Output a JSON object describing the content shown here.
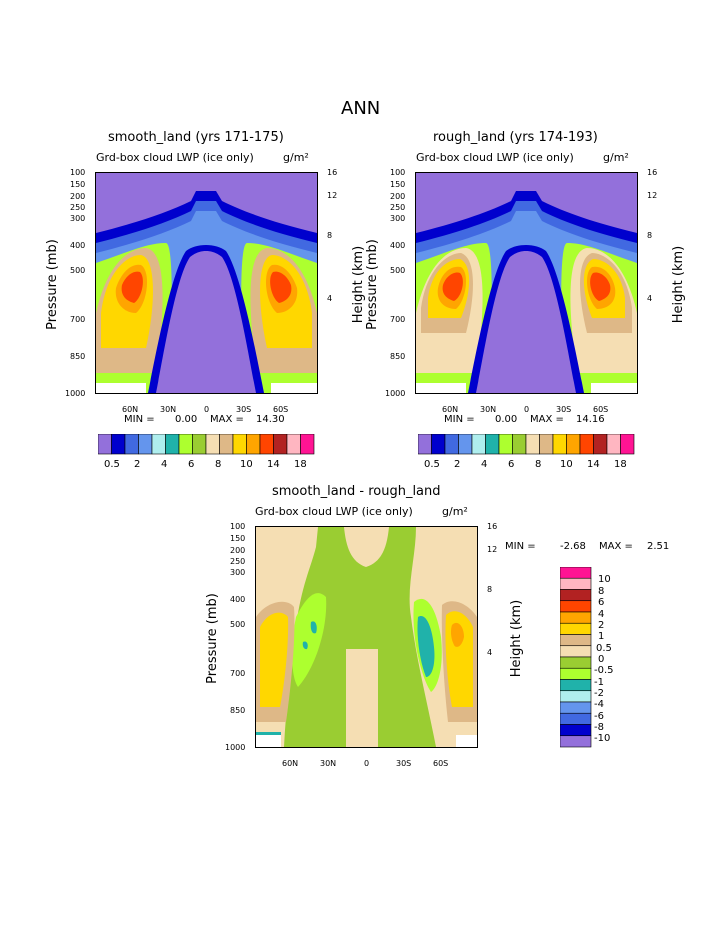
{
  "page_title": "ANN",
  "colors": {
    "lwp_levels": [
      "#9370DB",
      "#0000CD",
      "#4169E1",
      "#6495ED",
      "#AFEEEE",
      "#20B2AA",
      "#ADFF2F",
      "#9ACD32",
      "#F5DEB3",
      "#DEB887",
      "#FFD700",
      "#FFA500",
      "#FF4500",
      "#B22222",
      "#FFB6C1",
      "#FF1493"
    ],
    "diff_levels": [
      "#FF1493",
      "#FFB6C1",
      "#B22222",
      "#FF4500",
      "#FFA500",
      "#FFD700",
      "#DEB887",
      "#F5DEB3",
      "#9ACD32",
      "#ADFF2F",
      "#20B2AA",
      "#AFEEEE",
      "#6495ED",
      "#4169E1",
      "#0000CD",
      "#9370DB"
    ]
  },
  "chart_data": [
    {
      "type": "heatmap",
      "title": "smooth_land (yrs 171-175)",
      "subtitle": "Grd-box cloud LWP (ice only)",
      "units": "g/m²",
      "ylabel": "Pressure (mb)",
      "y2label": "Height (km)",
      "x_ticks": [
        "60N",
        "30N",
        "0",
        "30S",
        "60S"
      ],
      "y_ticks": [
        "100",
        "150",
        "200",
        "250",
        "300",
        "400",
        "500",
        "700",
        "850",
        "1000"
      ],
      "y2_ticks": [
        "16",
        "12",
        "8",
        "4"
      ],
      "min_label": "MIN =",
      "min_value": "0.00",
      "max_label": "MAX =",
      "max_value": "14.30",
      "colorbar_labels": [
        "0.5",
        "2",
        "4",
        "6",
        "8",
        "10",
        "14",
        "18"
      ]
    },
    {
      "type": "heatmap",
      "title": "rough_land (yrs 174-193)",
      "subtitle": "Grd-box cloud LWP (ice only)",
      "units": "g/m²",
      "ylabel": "Pressure (mb)",
      "y2label": "Height (km)",
      "x_ticks": [
        "60N",
        "30N",
        "0",
        "30S",
        "60S"
      ],
      "y_ticks": [
        "100",
        "150",
        "200",
        "250",
        "300",
        "400",
        "500",
        "700",
        "850",
        "1000"
      ],
      "y2_ticks": [
        "16",
        "12",
        "8",
        "4"
      ],
      "min_label": "MIN =",
      "min_value": "0.00",
      "max_label": "MAX =",
      "max_value": "14.16",
      "colorbar_labels": [
        "0.5",
        "2",
        "4",
        "6",
        "8",
        "10",
        "14",
        "18"
      ]
    },
    {
      "type": "heatmap",
      "title": "smooth_land - rough_land",
      "subtitle": "Grd-box cloud LWP (ice only)",
      "units": "g/m²",
      "ylabel": "Pressure (mb)",
      "y2label": "Height (km)",
      "x_ticks": [
        "60N",
        "30N",
        "0",
        "30S",
        "60S"
      ],
      "y_ticks": [
        "100",
        "150",
        "200",
        "250",
        "300",
        "400",
        "500",
        "700",
        "850",
        "1000"
      ],
      "y2_ticks": [
        "16",
        "12",
        "8",
        "4"
      ],
      "min_label": "MIN =",
      "min_value": "-2.68",
      "max_label": "MAX =",
      "max_value": "2.51",
      "colorbar_labels": [
        "10",
        "8",
        "6",
        "4",
        "2",
        "1",
        "0.5",
        "0",
        "-0.5",
        "-1",
        "-2",
        "-4",
        "-6",
        "-8",
        "-10"
      ]
    }
  ]
}
